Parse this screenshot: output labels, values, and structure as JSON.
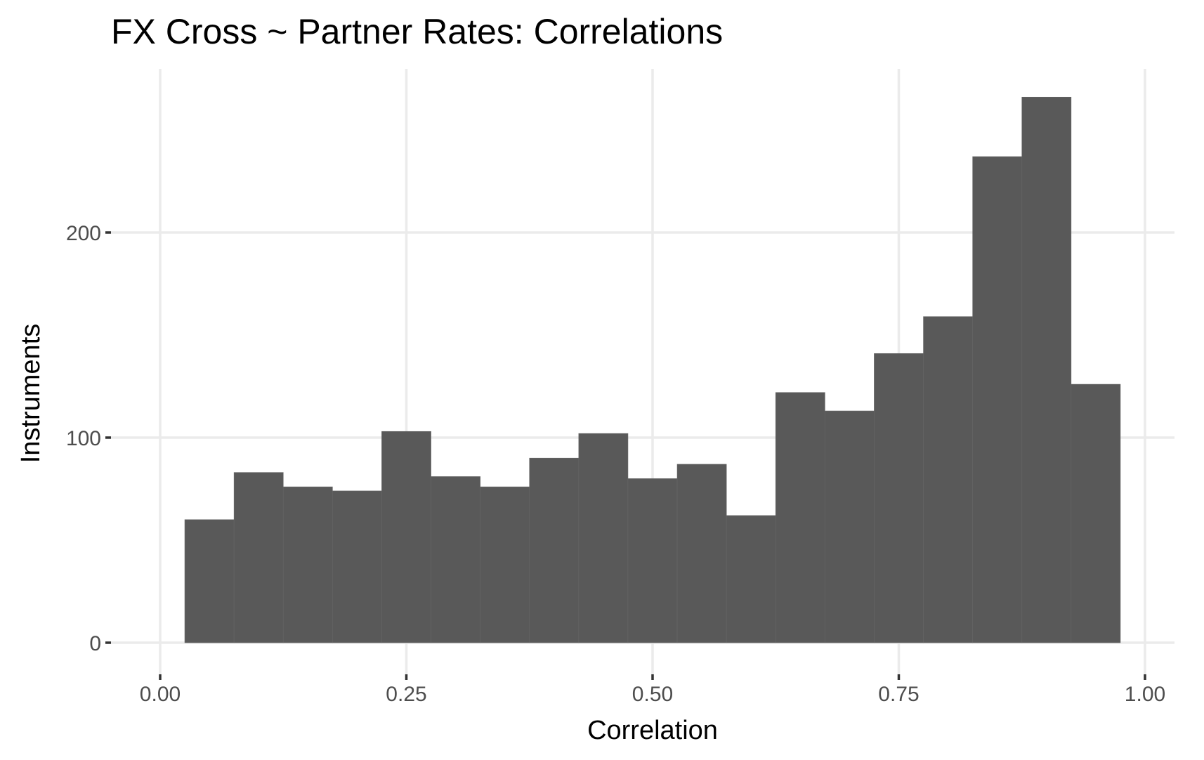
{
  "chart_data": {
    "type": "bar",
    "title": "FX Cross ~ Partner Rates: Correlations",
    "xlabel": "Correlation",
    "ylabel": "Instruments",
    "xlim": [
      0.0,
      1.0
    ],
    "ylim": [
      0,
      270
    ],
    "x_ticks": [
      0.0,
      0.25,
      0.5,
      0.75,
      1.0
    ],
    "x_tick_labels": [
      "0.00",
      "0.25",
      "0.50",
      "0.75",
      "1.00"
    ],
    "y_ticks": [
      0,
      100,
      200
    ],
    "y_tick_labels": [
      "0",
      "100",
      "200"
    ],
    "grid": true,
    "legend": "none",
    "bin_width": 0.05,
    "bins": [
      {
        "x0": 0.025,
        "x1": 0.075,
        "count": 60
      },
      {
        "x0": 0.075,
        "x1": 0.125,
        "count": 83
      },
      {
        "x0": 0.125,
        "x1": 0.175,
        "count": 76
      },
      {
        "x0": 0.175,
        "x1": 0.225,
        "count": 74
      },
      {
        "x0": 0.225,
        "x1": 0.275,
        "count": 103
      },
      {
        "x0": 0.275,
        "x1": 0.325,
        "count": 81
      },
      {
        "x0": 0.325,
        "x1": 0.375,
        "count": 76
      },
      {
        "x0": 0.375,
        "x1": 0.425,
        "count": 90
      },
      {
        "x0": 0.425,
        "x1": 0.475,
        "count": 102
      },
      {
        "x0": 0.475,
        "x1": 0.525,
        "count": 80
      },
      {
        "x0": 0.525,
        "x1": 0.575,
        "count": 87
      },
      {
        "x0": 0.575,
        "x1": 0.625,
        "count": 62
      },
      {
        "x0": 0.625,
        "x1": 0.675,
        "count": 122
      },
      {
        "x0": 0.675,
        "x1": 0.725,
        "count": 113
      },
      {
        "x0": 0.725,
        "x1": 0.775,
        "count": 141
      },
      {
        "x0": 0.775,
        "x1": 0.825,
        "count": 159
      },
      {
        "x0": 0.825,
        "x1": 0.875,
        "count": 237
      },
      {
        "x0": 0.875,
        "x1": 0.925,
        "count": 266
      },
      {
        "x0": 0.925,
        "x1": 0.975,
        "count": 126
      }
    ]
  },
  "colors": {
    "bar_fill": "#595959",
    "panel_background": "#ffffff",
    "grid": "#ebebeb",
    "tick_text": "#4d4d4d",
    "title_text": "#000000"
  }
}
